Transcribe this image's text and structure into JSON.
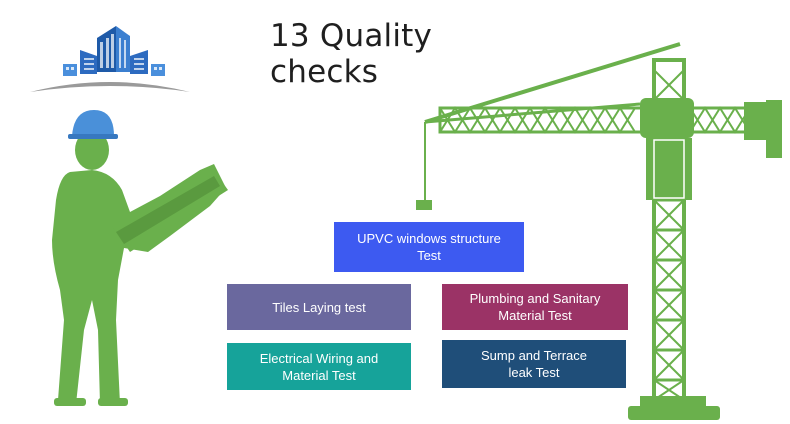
{
  "title": "13 Quality checks",
  "cards": [
    {
      "label": "UPVC windows structure\nTest",
      "color": "#3d5af1"
    },
    {
      "label": "Tiles Laying test",
      "color": "#6a689e"
    },
    {
      "label": "Plumbing and Sanitary\nMaterial Test",
      "color": "#9b3366"
    },
    {
      "label": "Electrical Wiring and\nMaterial Test",
      "color": "#16a39a"
    },
    {
      "label": "Sump and Terrace\nleak Test",
      "color": "#1f4e79"
    }
  ],
  "colors": {
    "crane": "#6ab04c",
    "worker": "#6ab04c",
    "helmet": "#4a90d9",
    "logo_blue": "#1e5aa8",
    "logo_arc": "#9a9a9a"
  }
}
